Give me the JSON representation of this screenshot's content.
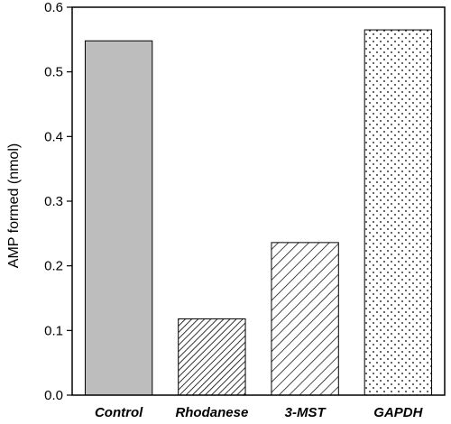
{
  "chart_data": {
    "type": "bar",
    "title": "",
    "xlabel": "",
    "ylabel": "AMP formed (nmol)",
    "ylim": [
      0,
      0.6
    ],
    "yticks": [
      "0.0",
      "0.1",
      "0.2",
      "0.3",
      "0.4",
      "0.5",
      "0.6"
    ],
    "categories": [
      "Control",
      "Rhodanese",
      "3-MST",
      "GAPDH"
    ],
    "values": [
      0.548,
      0.118,
      0.236,
      0.565
    ],
    "fills": [
      "solid-gray",
      "dense-diagonal-hatch",
      "diagonal-hatch",
      "dots"
    ],
    "grid": false,
    "legend": "none",
    "colors": {
      "bar_gray": "#bdbdbd",
      "outline": "#000000",
      "background": "#ffffff"
    }
  }
}
